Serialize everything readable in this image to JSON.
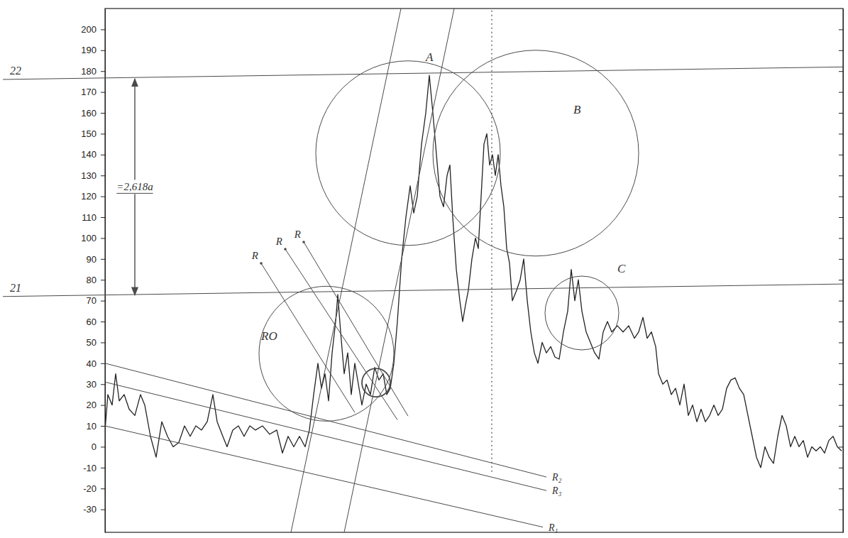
{
  "chart_data": {
    "type": "line",
    "color": "#222222",
    "grid": false,
    "tick_labels": "y",
    "xlim": [
      0,
      104
    ],
    "ylim": [
      -41,
      210
    ],
    "yticks": [
      -30,
      -20,
      -10,
      0,
      10,
      20,
      30,
      40,
      50,
      60,
      70,
      80,
      90,
      100,
      110,
      120,
      130,
      140,
      150,
      160,
      170,
      180,
      190,
      200
    ],
    "x": [
      0,
      0.4,
      1,
      1.5,
      2,
      2.7,
      3.4,
      4.2,
      5,
      5.6,
      6.4,
      7.2,
      8,
      8.8,
      9.6,
      10.4,
      11.2,
      12,
      12.8,
      13.6,
      14.4,
      15.2,
      15.8,
      16.6,
      17.2,
      18,
      18.8,
      19.6,
      20.4,
      21.2,
      22.2,
      23.2,
      24.2,
      25,
      25.8,
      26.6,
      27.4,
      28.2,
      28.8,
      29.4,
      30,
      30.5,
      31,
      31.5,
      32,
      32.5,
      32.8,
      33.2,
      33.7,
      34.2,
      34.7,
      35.2,
      35.7,
      36.2,
      36.8,
      37.4,
      38,
      38.6,
      39.2,
      39.7,
      40.2,
      40.7,
      41.2,
      41.8,
      42.4,
      43,
      43.5,
      44,
      44.6,
      45.2,
      45.7,
      46.2,
      46.7,
      47.2,
      47.7,
      48.2,
      48.6,
      49,
      49.5,
      50,
      50.4,
      50.8,
      51.2,
      51.7,
      52.2,
      52.6,
      53,
      53.4,
      53.8,
      54.2,
      54.6,
      55,
      55.4,
      55.8,
      56.2,
      56.6,
      57,
      57.4,
      58,
      58.5,
      59,
      59.5,
      60,
      60.5,
      61,
      61.6,
      62.2,
      62.8,
      63.4,
      64,
      64.6,
      65.2,
      65.7,
      66.2,
      66.7,
      67.2,
      67.8,
      68.4,
      69,
      69.6,
      70.2,
      70.8,
      71.4,
      72.2,
      73,
      73.8,
      74.6,
      75.2,
      75.8,
      76.4,
      77,
      77.6,
      78,
      78.6,
      79.2,
      79.8,
      80.4,
      81,
      81.6,
      82.2,
      82.8,
      83.4,
      84,
      84.6,
      85.2,
      85.8,
      86.4,
      87,
      87.6,
      88.2,
      88.8,
      89.4,
      90,
      90.6,
      91.2,
      91.8,
      92.4,
      93,
      93.6,
      94.2,
      94.8,
      95.4,
      96,
      96.6,
      97.2,
      97.8,
      98.4,
      99,
      99.6,
      100.2,
      100.8,
      101.4,
      102,
      102.6,
      103.2,
      103.8
    ],
    "values": [
      8,
      25,
      20,
      35,
      22,
      25,
      18,
      15,
      25,
      20,
      5,
      -5,
      12,
      5,
      0,
      2,
      10,
      5,
      10,
      8,
      12,
      25,
      12,
      5,
      0,
      8,
      10,
      5,
      10,
      8,
      10,
      6,
      8,
      -3,
      5,
      0,
      5,
      0,
      8,
      25,
      40,
      28,
      35,
      22,
      45,
      60,
      73,
      55,
      35,
      45,
      25,
      40,
      30,
      20,
      30,
      25,
      38,
      32,
      35,
      25,
      28,
      40,
      60,
      90,
      110,
      125,
      112,
      120,
      145,
      160,
      178,
      160,
      140,
      120,
      115,
      130,
      135,
      110,
      85,
      70,
      60,
      68,
      75,
      90,
      100,
      95,
      120,
      145,
      150,
      135,
      140,
      130,
      140,
      125,
      115,
      95,
      88,
      70,
      75,
      80,
      90,
      70,
      55,
      45,
      40,
      50,
      45,
      48,
      43,
      42,
      55,
      65,
      85,
      70,
      80,
      65,
      55,
      50,
      45,
      42,
      55,
      60,
      55,
      58,
      55,
      58,
      52,
      55,
      62,
      52,
      55,
      48,
      35,
      30,
      32,
      25,
      28,
      20,
      30,
      15,
      20,
      12,
      18,
      12,
      15,
      20,
      15,
      18,
      28,
      32,
      33,
      28,
      25,
      15,
      5,
      -5,
      -10,
      0,
      -5,
      -8,
      5,
      15,
      10,
      0,
      5,
      0,
      3,
      -5,
      0,
      -2,
      0,
      -3,
      3,
      5,
      0,
      -2
    ],
    "annotations": {
      "levels": [
        {
          "label": "22",
          "y1": 176,
          "y2": 182
        },
        {
          "label": "21",
          "y1": 72,
          "y2": 78
        }
      ],
      "arrow": {
        "x": 4.2,
        "y1": 177,
        "y2": 72,
        "label": "=2,618a"
      },
      "marker_line": {
        "x": 54.5,
        "y1": -12,
        "y2": 210,
        "line_style": "dotted"
      },
      "channel_lines": [
        {
          "x1": 26.2,
          "y1": -41,
          "x2": 41.7,
          "y2": 210
        },
        {
          "x1": 33.7,
          "y1": -41,
          "x2": 49.2,
          "y2": 210
        }
      ],
      "trend_lines": [
        {
          "label": "R₂",
          "x1": 0,
          "y1": 40,
          "x2": 62.2,
          "y2": -14.5
        },
        {
          "label": "R₃",
          "x1": 0,
          "y1": 31,
          "x2": 62.2,
          "y2": -21
        },
        {
          "label": "R₁",
          "x1": 0,
          "y1": 10,
          "x2": 61.7,
          "y2": -38.5
        }
      ],
      "rays": [
        {
          "label": "R",
          "x1": 22,
          "y1": 87.9,
          "x2": 35.2,
          "y2": 16.4
        },
        {
          "label": "R",
          "x1": 25.4,
          "y1": 94.7,
          "x2": 41.2,
          "y2": 12.9
        },
        {
          "label": "R",
          "x1": 28,
          "y1": 98.1,
          "x2": 42.7,
          "y2": 14.7
        }
      ],
      "circles": [
        {
          "label": "RO",
          "cx": 31.2,
          "cy": 44.6,
          "r": 9.5,
          "label_x": 22,
          "label_y": 51
        },
        {
          "cx": 38.2,
          "cy": 30.7,
          "r": 2
        },
        {
          "label": "A",
          "cx": 42.7,
          "cy": 140.7,
          "r": 13,
          "label_x": 45.2,
          "label_y": 185
        },
        {
          "label": "B",
          "cx": 60.7,
          "cy": 140.7,
          "r": 14.5,
          "label_x": 66,
          "label_y": 159.5
        },
        {
          "label": "C",
          "cx": 67.2,
          "cy": 64.1,
          "r": 5.2,
          "label_x": 72.2,
          "label_y": 83.5
        }
      ]
    }
  }
}
